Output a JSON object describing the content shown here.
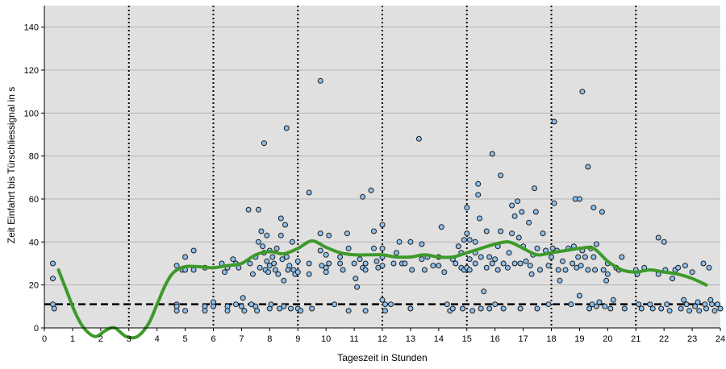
{
  "chart_data": {
    "type": "scatter",
    "xlabel": "Tageszeit in Stunden",
    "ylabel": "Zeit Einfahrt bis Türschliessignal in s",
    "xlim": [
      0,
      24
    ],
    "ylim": [
      0,
      150
    ],
    "x_ticks": [
      "0",
      "1",
      "2",
      "3",
      "4",
      "5",
      "6",
      "7",
      "8",
      "9",
      "10",
      "11",
      "12",
      "13",
      "14",
      "15",
      "16",
      "17",
      "18",
      "19",
      "20",
      "21",
      "22",
      "23",
      "24"
    ],
    "y_ticks": [
      "0",
      "20",
      "40",
      "60",
      "80",
      "100",
      "120",
      "140"
    ],
    "grid": true,
    "plot_background": "#e0e0e0",
    "gridline_color": "#b4b4b4",
    "point_fill": "#8ec0ee",
    "point_stroke": "#1a1a1a",
    "trend_color": "#3d9a2a",
    "reference_y": 11,
    "reference_x": [
      3,
      6,
      9,
      12,
      15,
      18,
      21
    ],
    "trend": [
      [
        0.5,
        27
      ],
      [
        0.8,
        17
      ],
      [
        1.1,
        7
      ],
      [
        1.4,
        0
      ],
      [
        1.8,
        -4
      ],
      [
        2.2,
        -1
      ],
      [
        2.5,
        0
      ],
      [
        2.9,
        -4
      ],
      [
        3.3,
        -4
      ],
      [
        3.7,
        2
      ],
      [
        4.0,
        11
      ],
      [
        4.3,
        20
      ],
      [
        4.6,
        26
      ],
      [
        5.0,
        28.5
      ],
      [
        5.5,
        28.5
      ],
      [
        6.0,
        28
      ],
      [
        6.5,
        29
      ],
      [
        7.0,
        30
      ],
      [
        7.5,
        34
      ],
      [
        8.0,
        35.5
      ],
      [
        8.5,
        34.5
      ],
      [
        9.0,
        37
      ],
      [
        9.5,
        40.5
      ],
      [
        10.0,
        37.5
      ],
      [
        10.5,
        35
      ],
      [
        11.0,
        34
      ],
      [
        11.5,
        34
      ],
      [
        12.0,
        34
      ],
      [
        12.5,
        33
      ],
      [
        13.0,
        33
      ],
      [
        13.5,
        34
      ],
      [
        14.0,
        33
      ],
      [
        14.5,
        33
      ],
      [
        15.0,
        35
      ],
      [
        15.5,
        37
      ],
      [
        16.0,
        39
      ],
      [
        16.5,
        40
      ],
      [
        17.0,
        37
      ],
      [
        17.5,
        34
      ],
      [
        18.0,
        35
      ],
      [
        18.5,
        36
      ],
      [
        19.0,
        37
      ],
      [
        19.5,
        37
      ],
      [
        20.0,
        31
      ],
      [
        20.5,
        27
      ],
      [
        21.0,
        26
      ],
      [
        21.5,
        27
      ],
      [
        22.0,
        26
      ],
      [
        22.5,
        25
      ],
      [
        23.0,
        23
      ],
      [
        23.5,
        20
      ]
    ],
    "points": [
      [
        0.3,
        30
      ],
      [
        0.3,
        23
      ],
      [
        0.3,
        11
      ],
      [
        0.35,
        9
      ],
      [
        4.7,
        29
      ],
      [
        4.7,
        11
      ],
      [
        4.7,
        10
      ],
      [
        4.7,
        8
      ],
      [
        4.9,
        27
      ],
      [
        5.0,
        33
      ],
      [
        5.0,
        27
      ],
      [
        5.0,
        8
      ],
      [
        5.3,
        36
      ],
      [
        5.3,
        27
      ],
      [
        5.7,
        28
      ],
      [
        5.7,
        10
      ],
      [
        5.7,
        8
      ],
      [
        6.0,
        12
      ],
      [
        6.0,
        10
      ],
      [
        6.3,
        30
      ],
      [
        6.4,
        26
      ],
      [
        6.5,
        28
      ],
      [
        6.5,
        10
      ],
      [
        6.5,
        8
      ],
      [
        6.7,
        32
      ],
      [
        6.8,
        30
      ],
      [
        6.8,
        11
      ],
      [
        6.9,
        28
      ],
      [
        7.0,
        10
      ],
      [
        7.05,
        14
      ],
      [
        7.1,
        8
      ],
      [
        7.25,
        55
      ],
      [
        7.3,
        30
      ],
      [
        7.35,
        11
      ],
      [
        7.4,
        25
      ],
      [
        7.5,
        33
      ],
      [
        7.5,
        10
      ],
      [
        7.55,
        8
      ],
      [
        7.6,
        55
      ],
      [
        7.6,
        40
      ],
      [
        7.65,
        28
      ],
      [
        7.7,
        45
      ],
      [
        7.75,
        38
      ],
      [
        7.8,
        86
      ],
      [
        7.8,
        35
      ],
      [
        7.85,
        27
      ],
      [
        7.9,
        43
      ],
      [
        7.9,
        31
      ],
      [
        7.95,
        26
      ],
      [
        8.0,
        36
      ],
      [
        8.0,
        29
      ],
      [
        8.0,
        9
      ],
      [
        8.05,
        11
      ],
      [
        8.1,
        33
      ],
      [
        8.15,
        30
      ],
      [
        8.2,
        27
      ],
      [
        8.25,
        37
      ],
      [
        8.3,
        25
      ],
      [
        8.35,
        9
      ],
      [
        8.4,
        51
      ],
      [
        8.4,
        43
      ],
      [
        8.45,
        32
      ],
      [
        8.5,
        22
      ],
      [
        8.5,
        10
      ],
      [
        8.55,
        48
      ],
      [
        8.6,
        93
      ],
      [
        8.6,
        33
      ],
      [
        8.65,
        27
      ],
      [
        8.7,
        29
      ],
      [
        8.75,
        9
      ],
      [
        8.8,
        40
      ],
      [
        8.85,
        27
      ],
      [
        8.9,
        25
      ],
      [
        9.0,
        31
      ],
      [
        9.0,
        26
      ],
      [
        9.0,
        9
      ],
      [
        9.1,
        8
      ],
      [
        9.4,
        63
      ],
      [
        9.4,
        30
      ],
      [
        9.4,
        25
      ],
      [
        9.5,
        9
      ],
      [
        9.8,
        115
      ],
      [
        9.8,
        44
      ],
      [
        9.8,
        36
      ],
      [
        9.85,
        29
      ],
      [
        10.0,
        34
      ],
      [
        10.0,
        28
      ],
      [
        10.0,
        26
      ],
      [
        10.1,
        43
      ],
      [
        10.1,
        30
      ],
      [
        10.3,
        11
      ],
      [
        10.5,
        33
      ],
      [
        10.5,
        30
      ],
      [
        10.6,
        27
      ],
      [
        10.75,
        44
      ],
      [
        10.8,
        37
      ],
      [
        10.8,
        8
      ],
      [
        11.0,
        30
      ],
      [
        11.05,
        23
      ],
      [
        11.1,
        19
      ],
      [
        11.2,
        32
      ],
      [
        11.3,
        61
      ],
      [
        11.3,
        28
      ],
      [
        11.4,
        30
      ],
      [
        11.4,
        27
      ],
      [
        11.4,
        8
      ],
      [
        11.6,
        64
      ],
      [
        11.7,
        45
      ],
      [
        11.7,
        37
      ],
      [
        11.8,
        31
      ],
      [
        11.85,
        28
      ],
      [
        12.0,
        48
      ],
      [
        12.0,
        37
      ],
      [
        12.0,
        33
      ],
      [
        12.0,
        29
      ],
      [
        12.0,
        13
      ],
      [
        12.1,
        11
      ],
      [
        12.1,
        8
      ],
      [
        12.3,
        11
      ],
      [
        12.4,
        30
      ],
      [
        12.5,
        35
      ],
      [
        12.6,
        40
      ],
      [
        12.7,
        30
      ],
      [
        12.8,
        30
      ],
      [
        13.0,
        9
      ],
      [
        13.0,
        40
      ],
      [
        13.05,
        27
      ],
      [
        13.3,
        88
      ],
      [
        13.4,
        39
      ],
      [
        13.4,
        32
      ],
      [
        13.5,
        27
      ],
      [
        13.6,
        33
      ],
      [
        13.8,
        29
      ],
      [
        14.0,
        33
      ],
      [
        14.0,
        29
      ],
      [
        14.1,
        47
      ],
      [
        14.2,
        26
      ],
      [
        14.3,
        11
      ],
      [
        14.4,
        8
      ],
      [
        14.5,
        32
      ],
      [
        14.5,
        9
      ],
      [
        14.6,
        30
      ],
      [
        14.7,
        38
      ],
      [
        14.8,
        35
      ],
      [
        14.8,
        28
      ],
      [
        14.85,
        9
      ],
      [
        14.9,
        41
      ],
      [
        14.9,
        27
      ],
      [
        15.0,
        56
      ],
      [
        15.0,
        44
      ],
      [
        15.0,
        28
      ],
      [
        15.1,
        41
      ],
      [
        15.1,
        32
      ],
      [
        15.1,
        27
      ],
      [
        15.2,
        8
      ],
      [
        15.3,
        40
      ],
      [
        15.3,
        35
      ],
      [
        15.3,
        30
      ],
      [
        15.4,
        67
      ],
      [
        15.4,
        62
      ],
      [
        15.45,
        51
      ],
      [
        15.5,
        33
      ],
      [
        15.5,
        9
      ],
      [
        15.6,
        17
      ],
      [
        15.7,
        45
      ],
      [
        15.7,
        28
      ],
      [
        15.8,
        33
      ],
      [
        15.8,
        9
      ],
      [
        15.9,
        81
      ],
      [
        15.9,
        30
      ],
      [
        16.0,
        32
      ],
      [
        16.0,
        11
      ],
      [
        16.1,
        38
      ],
      [
        16.1,
        27
      ],
      [
        16.2,
        71
      ],
      [
        16.2,
        45
      ],
      [
        16.3,
        30
      ],
      [
        16.3,
        9
      ],
      [
        16.45,
        28
      ],
      [
        16.5,
        35
      ],
      [
        16.6,
        57
      ],
      [
        16.6,
        44
      ],
      [
        16.7,
        52
      ],
      [
        16.7,
        30
      ],
      [
        16.8,
        59
      ],
      [
        16.85,
        42
      ],
      [
        16.9,
        30
      ],
      [
        16.9,
        9
      ],
      [
        16.95,
        54
      ],
      [
        17.0,
        38
      ],
      [
        17.1,
        31
      ],
      [
        17.2,
        49
      ],
      [
        17.25,
        29
      ],
      [
        17.3,
        25
      ],
      [
        17.35,
        34
      ],
      [
        17.4,
        65
      ],
      [
        17.45,
        54
      ],
      [
        17.5,
        37
      ],
      [
        17.5,
        9
      ],
      [
        17.6,
        27
      ],
      [
        17.7,
        44
      ],
      [
        17.8,
        36
      ],
      [
        17.9,
        29
      ],
      [
        17.9,
        11
      ],
      [
        18.0,
        33
      ],
      [
        18.05,
        37
      ],
      [
        18.1,
        96
      ],
      [
        18.1,
        58
      ],
      [
        18.2,
        36
      ],
      [
        18.25,
        27
      ],
      [
        18.3,
        22
      ],
      [
        18.4,
        31
      ],
      [
        18.5,
        27
      ],
      [
        18.6,
        37
      ],
      [
        18.7,
        11
      ],
      [
        18.75,
        30
      ],
      [
        18.8,
        38
      ],
      [
        18.85,
        60
      ],
      [
        18.9,
        28
      ],
      [
        18.95,
        33
      ],
      [
        19.0,
        60
      ],
      [
        19.0,
        15
      ],
      [
        19.05,
        29
      ],
      [
        19.1,
        110
      ],
      [
        19.1,
        36
      ],
      [
        19.2,
        33
      ],
      [
        19.3,
        75
      ],
      [
        19.3,
        27
      ],
      [
        19.35,
        9
      ],
      [
        19.4,
        37
      ],
      [
        19.45,
        11
      ],
      [
        19.5,
        56
      ],
      [
        19.5,
        33
      ],
      [
        19.55,
        27
      ],
      [
        19.6,
        39
      ],
      [
        19.6,
        10
      ],
      [
        19.7,
        12
      ],
      [
        19.8,
        54
      ],
      [
        19.85,
        27
      ],
      [
        19.9,
        10
      ],
      [
        19.95,
        22
      ],
      [
        20.0,
        30
      ],
      [
        20.0,
        25
      ],
      [
        20.1,
        9
      ],
      [
        20.2,
        13
      ],
      [
        20.3,
        28
      ],
      [
        20.4,
        27
      ],
      [
        20.5,
        33
      ],
      [
        20.6,
        9
      ],
      [
        21.0,
        27
      ],
      [
        21.05,
        25
      ],
      [
        21.1,
        11
      ],
      [
        21.2,
        9
      ],
      [
        21.3,
        28
      ],
      [
        21.5,
        11
      ],
      [
        21.6,
        9
      ],
      [
        21.8,
        42
      ],
      [
        21.8,
        25
      ],
      [
        21.9,
        9
      ],
      [
        22.0,
        40
      ],
      [
        22.05,
        27
      ],
      [
        22.1,
        11
      ],
      [
        22.2,
        8
      ],
      [
        22.3,
        23
      ],
      [
        22.4,
        27
      ],
      [
        22.5,
        28
      ],
      [
        22.6,
        9
      ],
      [
        22.7,
        13
      ],
      [
        22.75,
        29
      ],
      [
        22.8,
        11
      ],
      [
        22.9,
        8
      ],
      [
        23.0,
        26
      ],
      [
        23.1,
        10
      ],
      [
        23.2,
        12
      ],
      [
        23.25,
        8
      ],
      [
        23.4,
        30
      ],
      [
        23.45,
        11
      ],
      [
        23.5,
        9
      ],
      [
        23.6,
        28
      ],
      [
        23.65,
        13
      ],
      [
        23.7,
        11
      ],
      [
        23.8,
        8
      ],
      [
        23.9,
        11
      ],
      [
        24.0,
        9
      ]
    ]
  }
}
